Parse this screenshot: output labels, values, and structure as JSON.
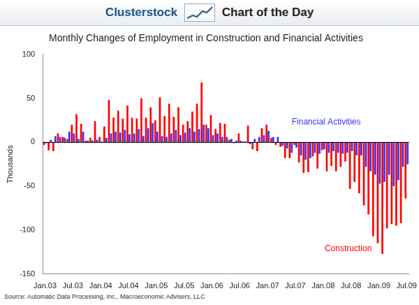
{
  "header": {
    "brand": "Clusterstock",
    "label": "Chart of the Day"
  },
  "chart_data": {
    "type": "bar",
    "title": "Monthly Changes of Employment in Construction and Financial Activities",
    "y_label": "Thousands",
    "categories": [
      "Jan.03",
      null,
      null,
      null,
      null,
      null,
      "Jul.03",
      null,
      null,
      null,
      null,
      null,
      "Jan.04",
      null,
      null,
      null,
      null,
      null,
      "Jul.04",
      null,
      null,
      null,
      null,
      null,
      "Jan.05",
      null,
      null,
      null,
      null,
      null,
      "Jul.05",
      null,
      null,
      null,
      null,
      null,
      "Jan.06",
      null,
      null,
      null,
      null,
      null,
      "Jul.06",
      null,
      null,
      null,
      null,
      null,
      "Jan.07",
      null,
      null,
      null,
      null,
      null,
      "Jul.07",
      null,
      null,
      null,
      null,
      null,
      "Jan.08",
      null,
      null,
      null,
      null,
      null,
      "Jul.08",
      null,
      null,
      null,
      null,
      null,
      "Jan.09",
      null,
      null,
      null,
      null,
      null,
      "Jul.09"
    ],
    "series": [
      {
        "name": "Construction",
        "color": "#ff0000",
        "values": [
          -3,
          -9,
          -10,
          10,
          6,
          4,
          20,
          32,
          21,
          2,
          5,
          24,
          6,
          18,
          48,
          28,
          36,
          27,
          42,
          28,
          27,
          50,
          28,
          40,
          25,
          51,
          30,
          44,
          29,
          40,
          20,
          24,
          35,
          44,
          68,
          20,
          31,
          15,
          22,
          21,
          3,
          -1,
          10,
          1,
          19,
          -8,
          -10,
          16,
          20,
          5,
          -3,
          -5,
          -18,
          -18,
          -3,
          -23,
          -35,
          -34,
          -16,
          -30,
          -9,
          -33,
          -27,
          -33,
          -28,
          -22,
          -53,
          -45,
          -58,
          -72,
          -82,
          -107,
          -115,
          -127,
          -98,
          -93,
          -95,
          -92,
          -64
        ]
      },
      {
        "name": "Financial Activities",
        "color": "#3333ff",
        "values": [
          -1,
          3,
          7,
          6,
          5,
          12,
          10,
          4,
          12,
          2,
          2,
          3,
          1,
          5,
          10,
          12,
          11,
          14,
          9,
          10,
          15,
          7,
          16,
          22,
          12,
          7,
          6,
          10,
          14,
          8,
          11,
          16,
          12,
          15,
          20,
          16,
          8,
          10,
          6,
          6,
          4,
          2,
          2,
          1,
          -2,
          4,
          6,
          8,
          13,
          6,
          6,
          -4,
          -7,
          -12,
          -6,
          -15,
          -20,
          -18,
          -12,
          -13,
          -8,
          -12,
          -10,
          -12,
          -13,
          -12,
          -10,
          -15,
          -15,
          -28,
          -33,
          -37,
          -47,
          -45,
          -37,
          -50,
          -43,
          -28,
          -25
        ]
      }
    ],
    "ylim": [
      -150,
      100
    ],
    "yticks": [
      -150,
      -100,
      -50,
      0,
      50,
      100
    ],
    "grid": false,
    "annotations": [
      {
        "text": "Financial Activities",
        "color": "#3333ff"
      },
      {
        "text": "Construction",
        "color": "#ff0000"
      }
    ]
  },
  "source": "Source: Automatic Data Processing, Inc., Macroeconomic Advisers, LLC"
}
